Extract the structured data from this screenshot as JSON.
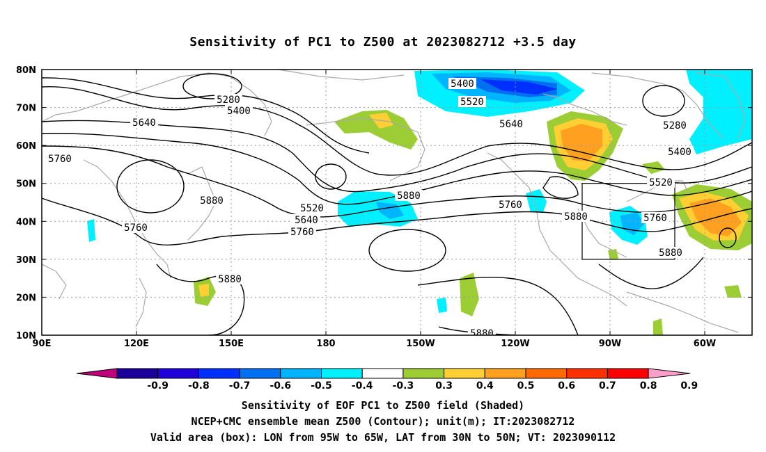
{
  "title": "Sensitivity of PC1 to Z500 at 2023082712 +3.5 day",
  "map": {
    "lat_labels": [
      "80N",
      "70N",
      "60N",
      "50N",
      "40N",
      "30N",
      "20N",
      "10N"
    ],
    "lon_labels": [
      "90E",
      "120E",
      "150E",
      "180",
      "150W",
      "120W",
      "90W",
      "60W"
    ],
    "valid_box": {
      "lon_from": "95W",
      "lon_to": "65W",
      "lat_from": "30N",
      "lat_to": "50N"
    },
    "contour_labels": [
      {
        "text": "5280",
        "id": "c-5280-a"
      },
      {
        "text": "5400",
        "id": "c-5400-a"
      },
      {
        "text": "5640",
        "id": "c-5640-a"
      },
      {
        "text": "5760",
        "id": "c-5760-a"
      },
      {
        "text": "5880",
        "id": "c-5880-a"
      },
      {
        "text": "5760",
        "id": "c-5760-b"
      },
      {
        "text": "5880",
        "id": "c-5880-b"
      },
      {
        "text": "5520",
        "id": "c-5520-a"
      },
      {
        "text": "5640",
        "id": "c-5640-b"
      },
      {
        "text": "5760",
        "id": "c-5760-c"
      },
      {
        "text": "5880",
        "id": "c-5880-c"
      },
      {
        "text": "5400",
        "id": "c-5400-b"
      },
      {
        "text": "5520",
        "id": "c-5520-b"
      },
      {
        "text": "5640",
        "id": "c-5640-c"
      },
      {
        "text": "5760",
        "id": "c-5760-d"
      },
      {
        "text": "5880",
        "id": "c-5880-d"
      },
      {
        "text": "5760",
        "id": "c-5760-e"
      },
      {
        "text": "5880",
        "id": "c-5880-e"
      },
      {
        "text": "5520",
        "id": "c-5520-c"
      },
      {
        "text": "5400",
        "id": "c-5400-c"
      },
      {
        "text": "5280",
        "id": "c-5280-b"
      },
      {
        "text": "5880",
        "id": "c-5880-f"
      }
    ]
  },
  "colorbar": {
    "labels": [
      "-0.9",
      "-0.8",
      "-0.7",
      "-0.6",
      "-0.5",
      "-0.4",
      "-0.3",
      "0.3",
      "0.4",
      "0.5",
      "0.6",
      "0.7",
      "0.8",
      "0.9"
    ],
    "colors": [
      "#1a0099",
      "#2000d8",
      "#0030ff",
      "#0070f0",
      "#00b4ff",
      "#00f0ff",
      "#ffffff",
      "#9ccd34",
      "#ffcf33",
      "#ffa021",
      "#ff6a00",
      "#ff3000",
      "#ff0000"
    ],
    "low_cap_color": "#c0007a",
    "high_cap_color": "#ff9ec8"
  },
  "footer": {
    "line1": "Sensitivity of EOF PC1 to Z500 field (Shaded)",
    "line2": "NCEP+CMC ensemble mean Z500 (Contour); unit(m); IT:2023082712",
    "line3": "Valid area (box): LON from 95W to 65W, LAT from 30N to 50N; VT: 2023090112"
  }
}
